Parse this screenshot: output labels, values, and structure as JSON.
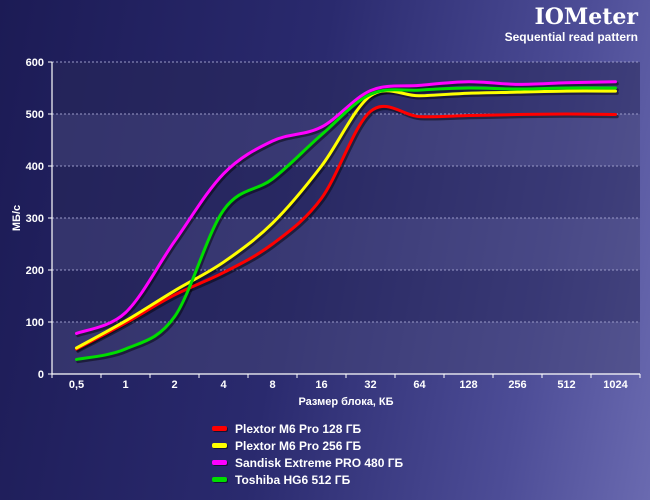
{
  "header": {
    "title": "IOMeter",
    "subtitle": "Sequential read pattern"
  },
  "chart_data": {
    "type": "line",
    "title": "IOMeter",
    "subtitle": "Sequential read pattern",
    "xlabel": "Размер блока, КБ",
    "ylabel": "МБ/с",
    "categories": [
      "0,5",
      "1",
      "2",
      "4",
      "8",
      "16",
      "32",
      "64",
      "128",
      "256",
      "512",
      "1024"
    ],
    "ylim": [
      0,
      600
    ],
    "yticks": [
      0,
      100,
      200,
      300,
      400,
      500,
      600
    ],
    "grid": true,
    "legend_position": "bottom",
    "series": [
      {
        "name": "Plextor M6 Pro 128 ГБ",
        "color": "#ff0000",
        "values": [
          48,
          98,
          152,
          195,
          250,
          338,
          505,
          495,
          497,
          499,
          500,
          499
        ]
      },
      {
        "name": "Plextor M6 Pro 256 ГБ",
        "color": "#ffff00",
        "values": [
          50,
          102,
          160,
          215,
          290,
          400,
          535,
          535,
          540,
          542,
          544,
          544
        ]
      },
      {
        "name": "Sandisk Extreme PRO 480 ГБ",
        "color": "#ff00ff",
        "values": [
          78,
          118,
          255,
          385,
          448,
          475,
          545,
          555,
          562,
          557,
          560,
          562
        ]
      },
      {
        "name": "Toshiba HG6 512 ГБ",
        "color": "#00dd00",
        "values": [
          28,
          48,
          110,
          315,
          375,
          460,
          538,
          546,
          550,
          548,
          550,
          550
        ]
      }
    ]
  }
}
